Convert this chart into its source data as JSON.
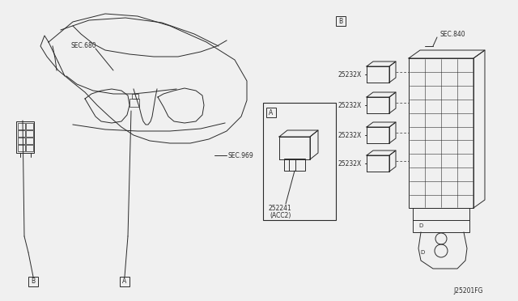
{
  "bg_color": "#f0f0f0",
  "line_color": "#2a2a2a",
  "text_color": "#2a2a2a",
  "fig_width": 6.4,
  "fig_height": 3.72,
  "footer": "J25201FG",
  "sec_680": "SEC.680",
  "sec_969": "SEC.969",
  "sec_840": "SEC.840",
  "part_252241": "252241",
  "acc2": "(ACC2)",
  "part_25232x": "25232X",
  "label_A": "A",
  "label_B": "B",
  "lw": 0.7,
  "fontsize": 5.5
}
